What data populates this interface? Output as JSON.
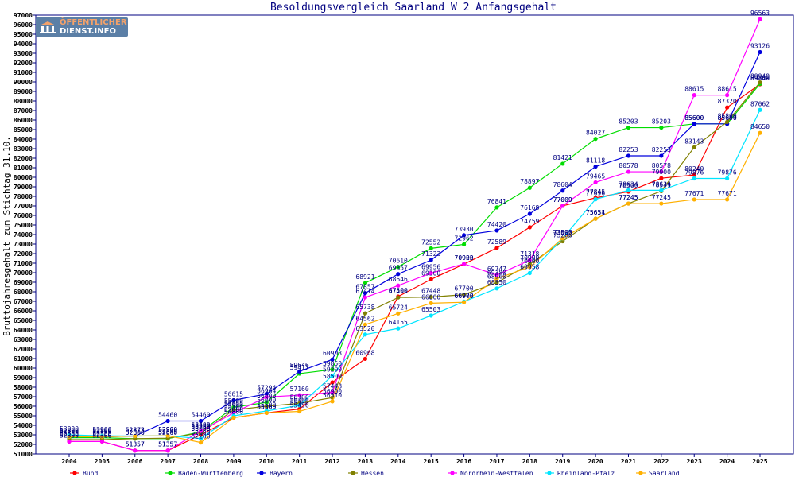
{
  "brand": {
    "line1": "ÖFFENTLICHER",
    "line2": "DIENST.INFO"
  },
  "chart_data": {
    "type": "line",
    "title": "Besoldungsvergleich Saarland W 2 Anfangsgehalt",
    "xlabel": "",
    "ylabel": "Bruttojahresgehalt zum Stichtag 31.10.",
    "x": [
      "2004",
      "2005",
      "2006",
      "2007",
      "2008",
      "2009",
      "2010",
      "2011",
      "2012",
      "2013",
      "2014",
      "2015",
      "2016",
      "2017",
      "2018",
      "2019",
      "2020",
      "2021",
      "2022",
      "2023",
      "2024",
      "2025"
    ],
    "ylim": [
      51000,
      97000
    ],
    "ytick_step": 1000,
    "grid": false,
    "legend": "bottom",
    "series": [
      {
        "name": "Bund",
        "color": "#ff0000",
        "values": [
          52300,
          52300,
          51357,
          51357,
          53000,
          54800,
          55300,
          55700,
          58500,
          60968,
          67500,
          69300,
          70900,
          72589,
          74759,
          77009,
          77845,
          78500,
          79900,
          80240,
          87320,
          89749
        ]
      },
      {
        "name": "Baden-Württemberg",
        "color": "#00dd00",
        "values": [
          52700,
          52700,
          52600,
          52600,
          53300,
          55900,
          56400,
          59417,
          59850,
          68921,
          70610,
          72552,
          72962,
          76841,
          78897,
          81421,
          84027,
          85203,
          85203,
          85600,
          85600,
          89800
        ]
      },
      {
        "name": "Bayern",
        "color": "#0000dd",
        "values": [
          52800,
          52800,
          52873,
          54460,
          54460,
          56615,
          57294,
          59646,
          60903,
          67857,
          69857,
          71323,
          73930,
          74420,
          76168,
          78604,
          81118,
          82253,
          82253,
          85600,
          85600,
          93126
        ]
      },
      {
        "name": "Hessen",
        "color": "#808000",
        "values": [
          52500,
          52500,
          52600,
          52649,
          53200,
          55600,
          56000,
          56300,
          56900,
          65738,
          67400,
          67448,
          67700,
          68960,
          70900,
          73286,
          75654,
          77245,
          78549,
          83143,
          85800,
          89949
        ]
      },
      {
        "name": "Nordrhein-Westfalen",
        "color": "#ff00ff",
        "values": [
          52300,
          52300,
          51357,
          51357,
          53400,
          55300,
          56964,
          57160,
          57448,
          67414,
          68646,
          69956,
          70922,
          69747,
          71318,
          77009,
          79465,
          80578,
          80578,
          88615,
          88615,
          96563
        ]
      },
      {
        "name": "Rheinland-Pfalz",
        "color": "#00e5ff",
        "values": [
          53000,
          52900,
          52873,
          52900,
          52600,
          55000,
          55500,
          56100,
          59200,
          63520,
          64155,
          65503,
          66970,
          68350,
          69958,
          73595,
          77696,
          78634,
          78634,
          79876,
          79876,
          87062
        ]
      },
      {
        "name": "Saarland",
        "color": "#ffb000",
        "values": [
          52800,
          52800,
          52873,
          52900,
          52200,
          54800,
          55300,
          55456,
          56510,
          64562,
          65724,
          66800,
          66900,
          69380,
          70600,
          73600,
          75651,
          77245,
          77245,
          77671,
          77671,
          84650
        ]
      }
    ],
    "data_labels": [
      [
        52300,
        52300,
        51357,
        51357,
        53000,
        54800,
        55300,
        55700,
        58500,
        60968,
        67500,
        69300,
        70900,
        72589,
        74759,
        77009,
        77845,
        78500,
        79900,
        80240,
        87320,
        89749
      ],
      [
        52700,
        52700,
        52600,
        52600,
        53300,
        55900,
        56400,
        59417,
        59850,
        68921,
        70610,
        72552,
        72962,
        76841,
        78897,
        81421,
        84027,
        85203,
        85203,
        85600,
        85600,
        89800
      ],
      [
        52800,
        52800,
        52873,
        54460,
        54460,
        56615,
        57294,
        59646,
        60903,
        67857,
        69857,
        71323,
        73930,
        74420,
        76168,
        78604,
        81118,
        82253,
        82253,
        85600,
        85600,
        93126
      ],
      [
        52500,
        52500,
        52600,
        52649,
        53200,
        55600,
        56000,
        56300,
        56900,
        65738,
        67400,
        67448,
        67700,
        68960,
        70900,
        73286,
        75654,
        77245,
        78549,
        83143,
        85800,
        89949
      ],
      [
        52300,
        52300,
        51357,
        51357,
        53400,
        55300,
        56964,
        57160,
        57448,
        67414,
        68646,
        69956,
        70922,
        69747,
        71318,
        77009,
        79465,
        80578,
        80578,
        88615,
        88615,
        96563
      ],
      [
        53000,
        52900,
        52873,
        52900,
        52600,
        55000,
        55500,
        56100,
        59200,
        63520,
        64155,
        65503,
        66970,
        68350,
        69958,
        73595,
        77696,
        78634,
        78634,
        79876,
        79876,
        87062
      ],
      [
        52800,
        52800,
        52873,
        52900,
        52200,
        54800,
        55300,
        55456,
        56510,
        64562,
        65724,
        66800,
        66900,
        69380,
        70600,
        73600,
        75651,
        77245,
        77245,
        77671,
        77671,
        84650
      ]
    ]
  }
}
